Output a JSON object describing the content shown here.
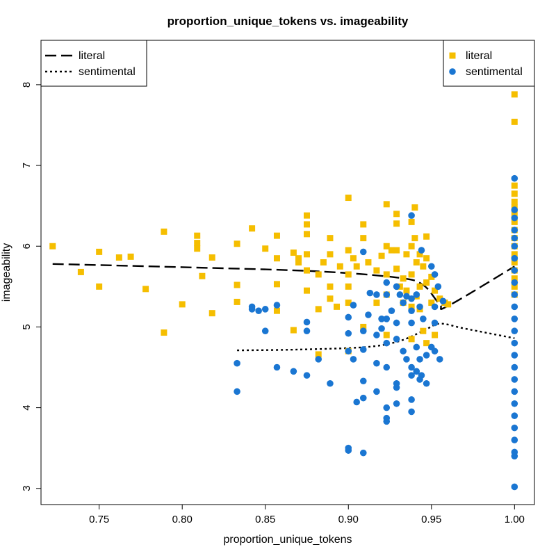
{
  "chart_data": {
    "type": "scatter",
    "title": "proportion_unique_tokens vs. imageability",
    "xlabel": "proportion_unique_tokens",
    "ylabel": "imageability",
    "xlim": [
      0.715,
      1.012
    ],
    "ylim": [
      2.8,
      8.55
    ],
    "x_ticks": [
      0.75,
      0.8,
      0.85,
      0.9,
      0.95,
      1.0
    ],
    "x_tick_labels": [
      "0.75",
      "0.80",
      "0.85",
      "0.90",
      "0.95",
      "1.00"
    ],
    "y_ticks": [
      3,
      4,
      5,
      6,
      7,
      8
    ],
    "y_tick_labels": [
      "3",
      "4",
      "5",
      "6",
      "7",
      "8"
    ],
    "grid": false,
    "series": [
      {
        "name": "literal",
        "marker": "square",
        "color": "#F5BE00",
        "points": [
          [
            0.722,
            6.0
          ],
          [
            0.739,
            5.68
          ],
          [
            0.75,
            5.93
          ],
          [
            0.75,
            5.5
          ],
          [
            0.762,
            5.86
          ],
          [
            0.769,
            5.87
          ],
          [
            0.778,
            5.47
          ],
          [
            0.789,
            6.18
          ],
          [
            0.789,
            4.93
          ],
          [
            0.8,
            5.28
          ],
          [
            0.809,
            6.13
          ],
          [
            0.809,
            6.04
          ],
          [
            0.809,
            5.97
          ],
          [
            0.812,
            5.63
          ],
          [
            0.818,
            5.86
          ],
          [
            0.818,
            5.17
          ],
          [
            0.833,
            6.03
          ],
          [
            0.833,
            5.52
          ],
          [
            0.833,
            5.31
          ],
          [
            0.842,
            6.22
          ],
          [
            0.85,
            5.97
          ],
          [
            0.857,
            6.13
          ],
          [
            0.857,
            5.85
          ],
          [
            0.857,
            5.53
          ],
          [
            0.857,
            5.2
          ],
          [
            0.867,
            5.92
          ],
          [
            0.867,
            4.96
          ],
          [
            0.87,
            5.85
          ],
          [
            0.87,
            5.8
          ],
          [
            0.875,
            6.38
          ],
          [
            0.875,
            6.27
          ],
          [
            0.875,
            6.15
          ],
          [
            0.875,
            5.9
          ],
          [
            0.875,
            5.7
          ],
          [
            0.875,
            5.45
          ],
          [
            0.882,
            5.65
          ],
          [
            0.882,
            5.22
          ],
          [
            0.882,
            4.66
          ],
          [
            0.885,
            5.8
          ],
          [
            0.889,
            6.1
          ],
          [
            0.889,
            5.9
          ],
          [
            0.889,
            5.5
          ],
          [
            0.889,
            5.35
          ],
          [
            0.893,
            5.25
          ],
          [
            0.895,
            5.75
          ],
          [
            0.9,
            6.6
          ],
          [
            0.9,
            5.95
          ],
          [
            0.9,
            5.65
          ],
          [
            0.9,
            5.5
          ],
          [
            0.9,
            5.3
          ],
          [
            0.9,
            4.7
          ],
          [
            0.903,
            5.85
          ],
          [
            0.905,
            5.75
          ],
          [
            0.909,
            6.27
          ],
          [
            0.909,
            6.1
          ],
          [
            0.909,
            5.0
          ],
          [
            0.912,
            5.8
          ],
          [
            0.917,
            5.7
          ],
          [
            0.917,
            5.3
          ],
          [
            0.92,
            5.88
          ],
          [
            0.923,
            6.52
          ],
          [
            0.923,
            6.0
          ],
          [
            0.923,
            5.65
          ],
          [
            0.923,
            5.4
          ],
          [
            0.923,
            4.9
          ],
          [
            0.926,
            5.95
          ],
          [
            0.929,
            6.4
          ],
          [
            0.929,
            6.28
          ],
          [
            0.929,
            5.95
          ],
          [
            0.929,
            5.72
          ],
          [
            0.931,
            5.5
          ],
          [
            0.933,
            5.6
          ],
          [
            0.933,
            5.3
          ],
          [
            0.935,
            5.9
          ],
          [
            0.935,
            5.45
          ],
          [
            0.938,
            6.3
          ],
          [
            0.938,
            6.0
          ],
          [
            0.938,
            5.65
          ],
          [
            0.938,
            5.25
          ],
          [
            0.938,
            4.85
          ],
          [
            0.94,
            6.48
          ],
          [
            0.94,
            6.1
          ],
          [
            0.941,
            5.8
          ],
          [
            0.941,
            5.38
          ],
          [
            0.943,
            5.9
          ],
          [
            0.943,
            5.5
          ],
          [
            0.943,
            5.22
          ],
          [
            0.945,
            5.75
          ],
          [
            0.945,
            4.95
          ],
          [
            0.947,
            6.12
          ],
          [
            0.947,
            5.85
          ],
          [
            0.947,
            5.55
          ],
          [
            0.947,
            4.8
          ],
          [
            0.95,
            5.62
          ],
          [
            0.95,
            5.3
          ],
          [
            0.952,
            5.45
          ],
          [
            0.952,
            4.9
          ],
          [
            0.955,
            5.35
          ],
          [
            0.958,
            5.3
          ],
          [
            0.96,
            5.28
          ],
          [
            1.0,
            7.88
          ],
          [
            1.0,
            7.54
          ],
          [
            1.0,
            6.75
          ],
          [
            1.0,
            6.65
          ],
          [
            1.0,
            6.55
          ],
          [
            1.0,
            6.48
          ],
          [
            1.0,
            6.4
          ],
          [
            1.0,
            6.3
          ],
          [
            1.0,
            6.2
          ],
          [
            1.0,
            6.1
          ],
          [
            1.0,
            6.0
          ],
          [
            1.0,
            5.9
          ],
          [
            1.0,
            5.8
          ],
          [
            1.0,
            5.7
          ],
          [
            1.0,
            5.6
          ],
          [
            1.0,
            5.5
          ],
          [
            1.0,
            5.4
          ]
        ]
      },
      {
        "name": "sentimental",
        "marker": "circle",
        "color": "#1A76D2",
        "points": [
          [
            0.833,
            4.55
          ],
          [
            0.833,
            4.2
          ],
          [
            0.842,
            5.25
          ],
          [
            0.842,
            5.22
          ],
          [
            0.846,
            5.2
          ],
          [
            0.85,
            5.22
          ],
          [
            0.85,
            4.95
          ],
          [
            0.857,
            5.27
          ],
          [
            0.857,
            4.5
          ],
          [
            0.867,
            4.45
          ],
          [
            0.875,
            5.06
          ],
          [
            0.875,
            4.95
          ],
          [
            0.875,
            4.4
          ],
          [
            0.882,
            4.6
          ],
          [
            0.889,
            4.3
          ],
          [
            0.9,
            5.12
          ],
          [
            0.9,
            4.92
          ],
          [
            0.9,
            4.7
          ],
          [
            0.9,
            3.5
          ],
          [
            0.9,
            3.47
          ],
          [
            0.903,
            5.27
          ],
          [
            0.903,
            4.6
          ],
          [
            0.905,
            4.07
          ],
          [
            0.909,
            5.93
          ],
          [
            0.909,
            4.95
          ],
          [
            0.909,
            4.72
          ],
          [
            0.909,
            4.33
          ],
          [
            0.909,
            4.12
          ],
          [
            0.909,
            3.44
          ],
          [
            0.912,
            5.15
          ],
          [
            0.913,
            5.42
          ],
          [
            0.917,
            5.4
          ],
          [
            0.917,
            4.9
          ],
          [
            0.917,
            4.55
          ],
          [
            0.917,
            4.2
          ],
          [
            0.92,
            5.1
          ],
          [
            0.92,
            4.98
          ],
          [
            0.923,
            5.55
          ],
          [
            0.923,
            5.4
          ],
          [
            0.923,
            5.1
          ],
          [
            0.923,
            4.8
          ],
          [
            0.923,
            4.5
          ],
          [
            0.923,
            4.0
          ],
          [
            0.923,
            3.87
          ],
          [
            0.923,
            3.83
          ],
          [
            0.926,
            5.2
          ],
          [
            0.929,
            5.5
          ],
          [
            0.929,
            5.05
          ],
          [
            0.929,
            4.85
          ],
          [
            0.929,
            4.3
          ],
          [
            0.929,
            4.25
          ],
          [
            0.929,
            4.05
          ],
          [
            0.931,
            5.4
          ],
          [
            0.933,
            5.3
          ],
          [
            0.933,
            4.7
          ],
          [
            0.935,
            5.38
          ],
          [
            0.935,
            4.6
          ],
          [
            0.938,
            6.38
          ],
          [
            0.938,
            5.35
          ],
          [
            0.938,
            5.2
          ],
          [
            0.938,
            5.05
          ],
          [
            0.938,
            4.5
          ],
          [
            0.938,
            4.4
          ],
          [
            0.938,
            4.1
          ],
          [
            0.938,
            3.95
          ],
          [
            0.941,
            5.4
          ],
          [
            0.941,
            4.75
          ],
          [
            0.941,
            4.45
          ],
          [
            0.943,
            5.25
          ],
          [
            0.943,
            4.6
          ],
          [
            0.943,
            4.35
          ],
          [
            0.944,
            5.95
          ],
          [
            0.944,
            4.4
          ],
          [
            0.945,
            5.1
          ],
          [
            0.947,
            4.65
          ],
          [
            0.947,
            4.3
          ],
          [
            0.95,
            5.75
          ],
          [
            0.95,
            4.75
          ],
          [
            0.952,
            5.65
          ],
          [
            0.952,
            5.25
          ],
          [
            0.952,
            5.05
          ],
          [
            0.952,
            4.7
          ],
          [
            0.954,
            5.5
          ],
          [
            0.955,
            4.6
          ],
          [
            0.957,
            5.32
          ],
          [
            1.0,
            6.84
          ],
          [
            1.0,
            6.45
          ],
          [
            1.0,
            6.35
          ],
          [
            1.0,
            6.2
          ],
          [
            1.0,
            6.1
          ],
          [
            1.0,
            6.0
          ],
          [
            1.0,
            5.85
          ],
          [
            1.0,
            5.7
          ],
          [
            1.0,
            5.55
          ],
          [
            1.0,
            5.4
          ],
          [
            1.0,
            5.25
          ],
          [
            1.0,
            5.1
          ],
          [
            1.0,
            4.95
          ],
          [
            1.0,
            4.8
          ],
          [
            1.0,
            4.65
          ],
          [
            1.0,
            4.5
          ],
          [
            1.0,
            4.35
          ],
          [
            1.0,
            4.2
          ],
          [
            1.0,
            4.05
          ],
          [
            1.0,
            3.9
          ],
          [
            1.0,
            3.75
          ],
          [
            1.0,
            3.6
          ],
          [
            1.0,
            3.45
          ],
          [
            1.0,
            3.4
          ],
          [
            1.0,
            3.02
          ]
        ]
      }
    ],
    "trend_lines": [
      {
        "name": "literal",
        "style": "dashed",
        "color": "#000000",
        "points": [
          [
            0.722,
            5.78
          ],
          [
            0.8,
            5.74
          ],
          [
            0.88,
            5.69
          ],
          [
            0.93,
            5.61
          ],
          [
            0.945,
            5.52
          ],
          [
            0.955,
            5.28
          ],
          [
            0.96,
            5.26
          ],
          [
            1.0,
            5.75
          ]
        ]
      },
      {
        "name": "sentimental",
        "style": "dotted",
        "color": "#000000",
        "points": [
          [
            0.833,
            4.71
          ],
          [
            0.87,
            4.72
          ],
          [
            0.91,
            4.75
          ],
          [
            0.93,
            4.82
          ],
          [
            0.945,
            4.95
          ],
          [
            0.955,
            5.04
          ],
          [
            0.97,
            4.98
          ],
          [
            1.0,
            4.86
          ]
        ]
      }
    ],
    "legends": [
      {
        "placement": "top-left",
        "kind": "line",
        "entries": [
          "literal",
          "sentimental"
        ]
      },
      {
        "placement": "top-right",
        "kind": "marker",
        "entries": [
          "literal",
          "sentimental"
        ]
      }
    ]
  }
}
